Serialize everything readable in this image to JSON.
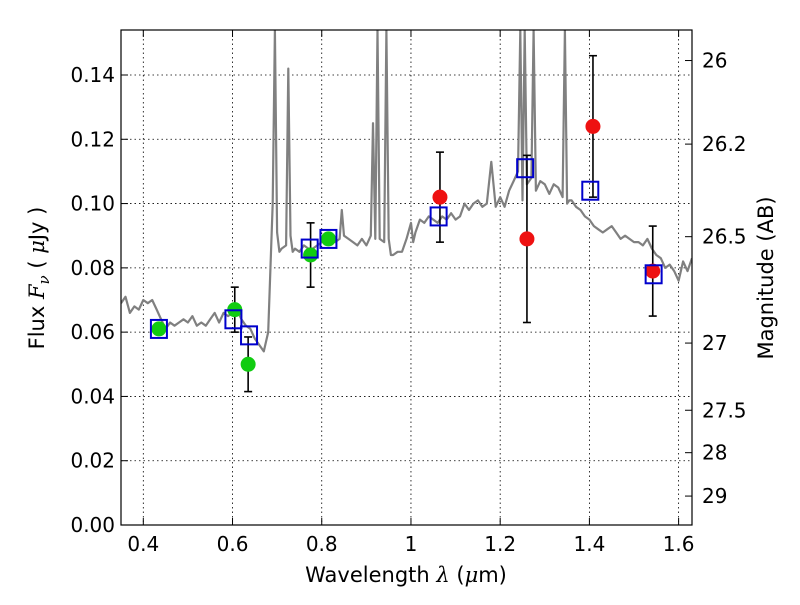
{
  "chart_data": {
    "type": "line",
    "title": "",
    "xlabel": {
      "prefix": "Wavelength  ",
      "symbol": "λ",
      "unit_open": " (",
      "unit_mu": "μ",
      "unit_rest": "m)"
    },
    "ylabel": {
      "prefix": "Flux  ",
      "symbol": "F",
      "sub": "ν",
      "unit_open": " (  ",
      "unit_mu": "μ",
      "unit_rest": "Jy  )"
    },
    "y2label": "Magnitude (AB)",
    "xlim": [
      0.35,
      1.63
    ],
    "ylim": [
      0.0,
      0.154
    ],
    "grid": true,
    "x_ticks": [
      0.4,
      0.6,
      0.8,
      1.0,
      1.2,
      1.4,
      1.6
    ],
    "x_tick_labels": [
      "0.4",
      "0.6",
      "0.8",
      "1",
      "1.2",
      "1.4",
      "1.6"
    ],
    "y_ticks": [
      0.0,
      0.02,
      0.04,
      0.06,
      0.08,
      0.1,
      0.12,
      0.14
    ],
    "y_tick_labels": [
      "0.00",
      "0.02",
      "0.04",
      "0.06",
      "0.08",
      "0.10",
      "0.12",
      "0.14"
    ],
    "y2_ticks": [
      {
        "label": "26",
        "flux": 0.1445
      },
      {
        "label": "26.2",
        "flux": 0.1185
      },
      {
        "label": "26.5",
        "flux": 0.0897
      },
      {
        "label": "27",
        "flux": 0.0566
      },
      {
        "label": "27.5",
        "flux": 0.0357
      },
      {
        "label": "28",
        "flux": 0.0225
      },
      {
        "label": "29",
        "flux": 0.009
      }
    ],
    "series": [
      {
        "kind": "model_spectrum",
        "color": "#808080",
        "x": [
          0.35,
          0.36,
          0.37,
          0.38,
          0.39,
          0.4,
          0.41,
          0.42,
          0.43,
          0.44,
          0.45,
          0.46,
          0.47,
          0.48,
          0.49,
          0.5,
          0.51,
          0.52,
          0.53,
          0.54,
          0.55,
          0.56,
          0.57,
          0.58,
          0.59,
          0.6,
          0.61,
          0.62,
          0.63,
          0.64,
          0.65,
          0.66,
          0.67,
          0.68,
          0.69,
          0.695,
          0.7,
          0.705,
          0.71,
          0.72,
          0.725,
          0.73,
          0.735,
          0.74,
          0.75,
          0.76,
          0.77,
          0.78,
          0.79,
          0.8,
          0.81,
          0.82,
          0.83,
          0.84,
          0.845,
          0.85,
          0.86,
          0.87,
          0.88,
          0.89,
          0.9,
          0.91,
          0.915,
          0.92,
          0.925,
          0.93,
          0.94,
          0.945,
          0.95,
          0.955,
          0.96,
          0.97,
          0.98,
          0.99,
          1.0,
          1.005,
          1.01,
          1.02,
          1.03,
          1.04,
          1.05,
          1.06,
          1.07,
          1.08,
          1.09,
          1.1,
          1.11,
          1.12,
          1.13,
          1.14,
          1.15,
          1.16,
          1.17,
          1.18,
          1.19,
          1.2,
          1.21,
          1.22,
          1.23,
          1.24,
          1.245,
          1.25,
          1.255,
          1.26,
          1.27,
          1.275,
          1.28,
          1.29,
          1.3,
          1.31,
          1.32,
          1.33,
          1.34,
          1.345,
          1.35,
          1.355,
          1.36,
          1.37,
          1.38,
          1.39,
          1.4,
          1.41,
          1.42,
          1.43,
          1.44,
          1.45,
          1.46,
          1.47,
          1.48,
          1.49,
          1.5,
          1.51,
          1.52,
          1.53,
          1.54,
          1.55,
          1.56,
          1.57,
          1.58,
          1.59,
          1.6,
          1.61,
          1.62,
          1.63
        ],
        "y": [
          0.069,
          0.071,
          0.066,
          0.068,
          0.067,
          0.07,
          0.069,
          0.07,
          0.067,
          0.064,
          0.061,
          0.063,
          0.062,
          0.063,
          0.064,
          0.063,
          0.065,
          0.062,
          0.063,
          0.062,
          0.064,
          0.066,
          0.063,
          0.066,
          0.065,
          0.066,
          0.067,
          0.064,
          0.062,
          0.061,
          0.058,
          0.056,
          0.054,
          0.06,
          0.1,
          0.154,
          0.091,
          0.085,
          0.086,
          0.087,
          0.142,
          0.09,
          0.085,
          0.086,
          0.085,
          0.087,
          0.086,
          0.086,
          0.087,
          0.088,
          0.089,
          0.089,
          0.088,
          0.089,
          0.098,
          0.09,
          0.089,
          0.088,
          0.087,
          0.089,
          0.087,
          0.09,
          0.125,
          0.089,
          0.154,
          0.089,
          0.088,
          0.154,
          0.089,
          0.084,
          0.084,
          0.085,
          0.085,
          0.089,
          0.094,
          0.088,
          0.091,
          0.095,
          0.094,
          0.096,
          0.095,
          0.094,
          0.096,
          0.095,
          0.097,
          0.095,
          0.096,
          0.1,
          0.098,
          0.1,
          0.101,
          0.099,
          0.1,
          0.113,
          0.099,
          0.102,
          0.099,
          0.104,
          0.107,
          0.11,
          0.154,
          0.101,
          0.154,
          0.106,
          0.108,
          0.154,
          0.104,
          0.107,
          0.106,
          0.103,
          0.106,
          0.105,
          0.102,
          0.154,
          0.1,
          0.101,
          0.101,
          0.099,
          0.098,
          0.096,
          0.095,
          0.093,
          0.092,
          0.091,
          0.092,
          0.093,
          0.091,
          0.089,
          0.09,
          0.089,
          0.088,
          0.088,
          0.087,
          0.089,
          0.086,
          0.084,
          0.083,
          0.08,
          0.081,
          0.079,
          0.076,
          0.082,
          0.079,
          0.083
        ]
      },
      {
        "kind": "measured_points",
        "color": "#ee1111",
        "x": [
          1.065,
          1.26,
          1.408,
          1.542
        ],
        "y": [
          0.102,
          0.089,
          0.124,
          0.079
        ],
        "err": [
          0.014,
          0.026,
          0.022,
          0.014
        ]
      },
      {
        "kind": "measured_points",
        "color": "#11cc11",
        "x": [
          0.435,
          0.605,
          0.635,
          0.775,
          0.815
        ],
        "y": [
          0.061,
          0.067,
          0.05,
          0.084,
          0.089
        ],
        "err": [
          0.0,
          0.007,
          0.0085,
          0.01,
          0.0
        ]
      },
      {
        "kind": "model_squares",
        "color": "#0000cc",
        "x": [
          0.435,
          0.602,
          0.637,
          0.773,
          0.815,
          1.062,
          1.256,
          1.402,
          1.544
        ],
        "y": [
          0.061,
          0.064,
          0.059,
          0.086,
          0.089,
          0.096,
          0.111,
          0.104,
          0.078
        ]
      }
    ]
  }
}
